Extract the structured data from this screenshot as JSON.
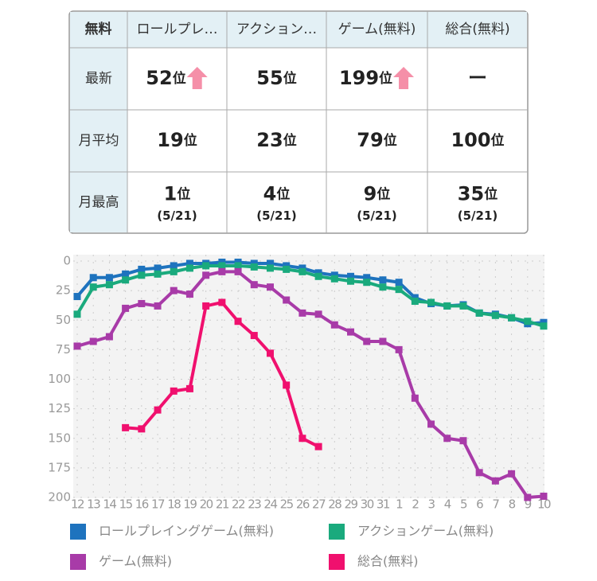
{
  "table": {
    "header": [
      "無料",
      "ロールプレ…",
      "アクション…",
      "ゲーム(無料)",
      "総合(無料)"
    ],
    "rows": [
      {
        "label": "最新",
        "cells": [
          {
            "rank": "52",
            "unit": "位",
            "trend": "up"
          },
          {
            "rank": "55",
            "unit": "位"
          },
          {
            "rank": "199",
            "unit": "位",
            "trend": "up"
          },
          {
            "rank": "ー"
          }
        ]
      },
      {
        "label": "月平均",
        "cells": [
          {
            "rank": "19",
            "unit": "位"
          },
          {
            "rank": "23",
            "unit": "位"
          },
          {
            "rank": "79",
            "unit": "位"
          },
          {
            "rank": "100",
            "unit": "位"
          }
        ]
      },
      {
        "label": "月最高",
        "cells": [
          {
            "rank": "1",
            "unit": "位",
            "date": "(5/21)"
          },
          {
            "rank": "4",
            "unit": "位",
            "date": "(5/21)"
          },
          {
            "rank": "9",
            "unit": "位",
            "date": "(5/21)"
          },
          {
            "rank": "35",
            "unit": "位",
            "date": "(5/21)"
          }
        ]
      }
    ]
  },
  "chart_data": {
    "type": "line",
    "categories": [
      "12",
      "13",
      "14",
      "15",
      "16",
      "17",
      "18",
      "19",
      "20",
      "21",
      "22",
      "23",
      "24",
      "25",
      "26",
      "27",
      "28",
      "29",
      "30",
      "31",
      "1",
      "2",
      "3",
      "4",
      "5",
      "6",
      "7",
      "8",
      "9",
      "10"
    ],
    "series": [
      {
        "name": "ロールプレイングゲーム(無料)",
        "color": "#1e73be",
        "values": [
          30,
          14,
          14,
          11,
          7,
          6,
          4,
          2,
          2,
          1,
          1,
          2,
          2,
          4,
          6,
          10,
          12,
          13,
          14,
          16,
          18,
          31,
          36,
          38,
          37,
          44,
          45,
          48,
          53,
          52
        ]
      },
      {
        "name": "アクションゲーム(無料)",
        "color": "#1aaa7d",
        "values": [
          45,
          22,
          20,
          16,
          12,
          11,
          9,
          6,
          4,
          4,
          4,
          5,
          6,
          7,
          9,
          13,
          15,
          17,
          18,
          22,
          24,
          34,
          35,
          38,
          38,
          44,
          46,
          48,
          51,
          55
        ]
      },
      {
        "name": "ゲーム(無料)",
        "color": "#a83ba8",
        "values": [
          72,
          68,
          64,
          40,
          36,
          38,
          25,
          28,
          12,
          9,
          9,
          20,
          22,
          33,
          44,
          45,
          54,
          60,
          68,
          68,
          75,
          116,
          138,
          150,
          152,
          179,
          186,
          180,
          200,
          199
        ]
      },
      {
        "name": "総合(無料)",
        "color": "#f0106e",
        "values": [
          null,
          null,
          null,
          141,
          142,
          126,
          110,
          108,
          38,
          35,
          51,
          63,
          78,
          105,
          150,
          157,
          null,
          null,
          null,
          null,
          null,
          null,
          null,
          null,
          null,
          null,
          null,
          null,
          null,
          null
        ]
      }
    ],
    "ylim": [
      0,
      200
    ],
    "yticks": [
      0,
      25,
      50,
      75,
      100,
      125,
      150,
      175,
      200
    ],
    "y_inverted": true,
    "grid": true,
    "legend": "bottom"
  }
}
